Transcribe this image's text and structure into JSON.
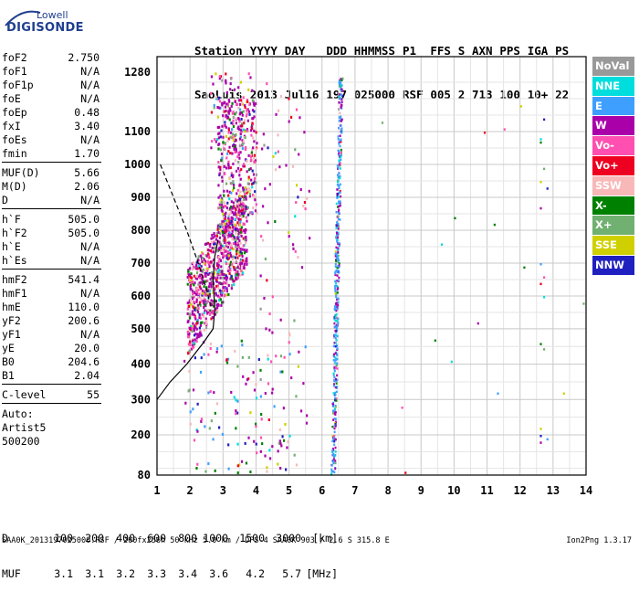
{
  "logo": {
    "line1": "Lowell",
    "line2": "DIGISONDE"
  },
  "header": {
    "labels": [
      "Station",
      "YYYY",
      "DAY",
      "DDD",
      "HHMMSS",
      "P1",
      "FFS",
      "S",
      "AXN",
      "PPS",
      "IGA",
      "PS"
    ],
    "values": [
      "SaoLuis",
      "2013",
      "Jul16",
      "197",
      "025000",
      "RSF",
      "005",
      "2",
      "713",
      "100",
      "10+",
      "22"
    ]
  },
  "params": {
    "group1": [
      {
        "name": "foF2",
        "value": "2.750"
      },
      {
        "name": "foF1",
        "value": "N/A"
      },
      {
        "name": "foF1p",
        "value": "N/A"
      },
      {
        "name": "foE",
        "value": "N/A"
      },
      {
        "name": "foEp",
        "value": "0.48"
      },
      {
        "name": "fxI",
        "value": "3.40"
      },
      {
        "name": "foEs",
        "value": "N/A"
      },
      {
        "name": "fmin",
        "value": "1.70"
      }
    ],
    "group2": [
      {
        "name": "MUF(D)",
        "value": "5.66"
      },
      {
        "name": "M(D)",
        "value": "2.06"
      },
      {
        "name": "D",
        "value": "N/A"
      }
    ],
    "group3": [
      {
        "name": "h`F",
        "value": "505.0"
      },
      {
        "name": "h`F2",
        "value": "505.0"
      },
      {
        "name": "h`E",
        "value": "N/A"
      },
      {
        "name": "h`Es",
        "value": "N/A"
      }
    ],
    "group4": [
      {
        "name": "hmF2",
        "value": "541.4"
      },
      {
        "name": "hmF1",
        "value": "N/A"
      },
      {
        "name": "hmE",
        "value": "110.0"
      },
      {
        "name": "yF2",
        "value": "200.6"
      },
      {
        "name": "yF1",
        "value": "N/A"
      },
      {
        "name": "yE",
        "value": "20.0"
      },
      {
        "name": "B0",
        "value": "204.6"
      },
      {
        "name": "B1",
        "value": "2.04"
      }
    ],
    "clevel": {
      "name": "C-level",
      "value": "55"
    },
    "auto_lines": [
      "Auto:",
      "Artist5",
      "500200"
    ]
  },
  "legend": [
    {
      "label": "NoVal",
      "color": "#999999"
    },
    {
      "label": "NNE",
      "color": "#00dddd"
    },
    {
      "label": "E",
      "color": "#3f9fff"
    },
    {
      "label": "W",
      "color": "#aa00aa"
    },
    {
      "label": "Vo-",
      "color": "#ff4fb0"
    },
    {
      "label": "Vo+",
      "color": "#ee0020"
    },
    {
      "label": "SSW",
      "color": "#f8b8b8"
    },
    {
      "label": "X-",
      "color": "#008000"
    },
    {
      "label": "X+",
      "color": "#70b070"
    },
    {
      "label": "SSE",
      "color": "#d0d000"
    },
    {
      "label": "NNW",
      "color": "#2020c0"
    }
  ],
  "chart_data": {
    "type": "scatter",
    "title": "",
    "xlabel": "",
    "ylabel": "",
    "xlim": [
      1,
      14
    ],
    "ylim": [
      80,
      1280
    ],
    "x_ticks": [
      "1",
      "2",
      "3",
      "4",
      "5",
      "6",
      "7",
      "8",
      "9",
      "10",
      "11",
      "12",
      "13",
      "14"
    ],
    "y_ticks": [
      "80",
      "200",
      "300",
      "400",
      "500",
      "600",
      "700",
      "800",
      "900",
      "1000",
      "1100",
      "1280"
    ],
    "y_scale": "stretched below 500, linear above",
    "grid": true,
    "legend_position": "right"
  },
  "d_muf": {
    "d_label": "D",
    "d_values": [
      "100",
      "200",
      "400",
      "600",
      "800",
      "1000",
      "1500",
      "3000",
      "[km]"
    ],
    "muf_label": "MUF",
    "muf_values": [
      "3.1",
      "3.1",
      "3.2",
      "3.3",
      "3.4",
      "3.6",
      "4.2",
      "5.7",
      "[MHz]"
    ]
  },
  "footer": {
    "left": "SAA0K_2013197025000.RSF / 260fx256h 50 kHz 5.0 km / DPS-4 SAA0K 903 / 2.6 S 315.8 E",
    "right": "Ion2Png 1.3.17"
  }
}
